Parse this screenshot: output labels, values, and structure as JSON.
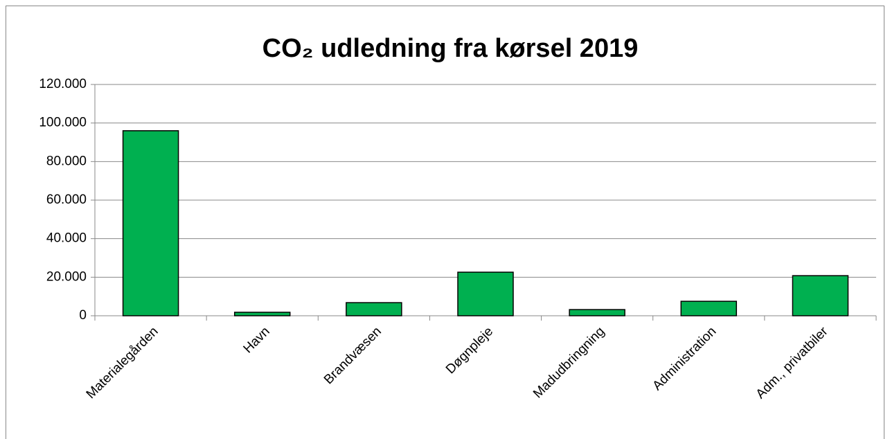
{
  "chart_data": {
    "type": "bar",
    "title": "CO₂ udledning fra kørsel 2019",
    "categories": [
      "Materialegården",
      "Havn",
      "Brandvæsen",
      "Døgnpleje",
      "Madudbringning",
      "Administration",
      "Adm., privatbiler"
    ],
    "values": [
      96000,
      1800,
      6800,
      22600,
      3200,
      7500,
      20800
    ],
    "color": "#00b050",
    "ylim": [
      0,
      120000
    ],
    "yticks": [
      0,
      {
        "value": 20000,
        "label": "20.000"
      },
      {
        "value": 40000,
        "label": "40.000"
      },
      {
        "value": 60000,
        "label": "60.000"
      },
      {
        "value": 80000,
        "label": "80.000"
      },
      {
        "value": 100000,
        "label": "100.000"
      },
      {
        "value": 120000,
        "label": "120.000"
      }
    ],
    "grid": true
  }
}
